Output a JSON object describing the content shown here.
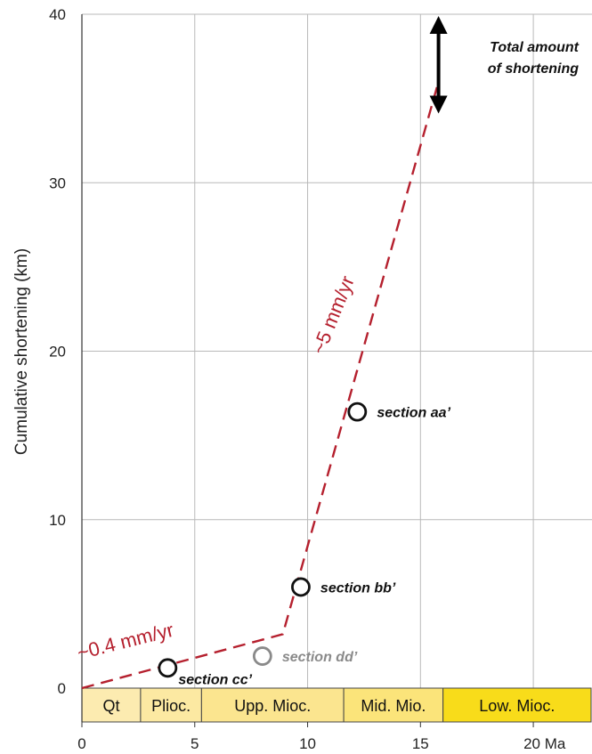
{
  "chart_data": {
    "type": "line",
    "title": "",
    "xlabel": "",
    "ylabel": "Cumulative shortening (km)",
    "xlim": [
      0,
      22.6
    ],
    "ylim": [
      0,
      40
    ],
    "x_ticks": [
      {
        "value": 0,
        "label": "0"
      },
      {
        "value": 5,
        "label": "5"
      },
      {
        "value": 10,
        "label": "10"
      },
      {
        "value": 15,
        "label": "15"
      },
      {
        "value": 20,
        "label": "20 Ma"
      }
    ],
    "y_ticks": [
      {
        "value": 0,
        "label": "0"
      },
      {
        "value": 10,
        "label": "10"
      },
      {
        "value": 20,
        "label": "20"
      },
      {
        "value": 30,
        "label": "30"
      },
      {
        "value": 40,
        "label": "40"
      }
    ],
    "grid": true,
    "trend_line": {
      "style": "dashed",
      "color": "#b5202e",
      "points": [
        {
          "x": 0,
          "y": 0
        },
        {
          "x": 8.9,
          "y": 3.2
        },
        {
          "x": 15.8,
          "y": 36
        }
      ]
    },
    "rate_annotations": [
      {
        "text": "~0.4 mm/yr",
        "x": 2.0,
        "y": 2.4,
        "angle": -14
      },
      {
        "text": "~5 mm/yr",
        "x": 11.4,
        "y": 22.0,
        "angle": -68
      }
    ],
    "sections": [
      {
        "label": "section aa’",
        "x": 12.2,
        "y": 16.4,
        "color": "#111111"
      },
      {
        "label": "section bb’",
        "x": 9.7,
        "y": 6.0,
        "color": "#111111"
      },
      {
        "label": "section cc’",
        "x": 3.8,
        "y": 1.2,
        "color": "#111111"
      },
      {
        "label": "section dd’",
        "x": 8.0,
        "y": 1.9,
        "color": "#8a8a8a"
      }
    ],
    "total_shortening": {
      "label_lines": [
        "Total amount",
        "of shortening"
      ],
      "x": 15.8,
      "y_from": 34,
      "y_to": 40
    },
    "periods": [
      {
        "label": "Qt",
        "from": 0,
        "to": 2.6,
        "color": "#fcebb0"
      },
      {
        "label": "Plioc.",
        "from": 2.6,
        "to": 5.3,
        "color": "#fce9a2"
      },
      {
        "label": "Upp. Mioc.",
        "from": 5.3,
        "to": 11.6,
        "color": "#fbe58f"
      },
      {
        "label": "Mid. Mio.",
        "from": 11.6,
        "to": 16.0,
        "color": "#fbe47a"
      },
      {
        "label": "Low. Mioc.",
        "from": 16.0,
        "to": 22.6,
        "color": "#f8dc1a"
      }
    ]
  }
}
